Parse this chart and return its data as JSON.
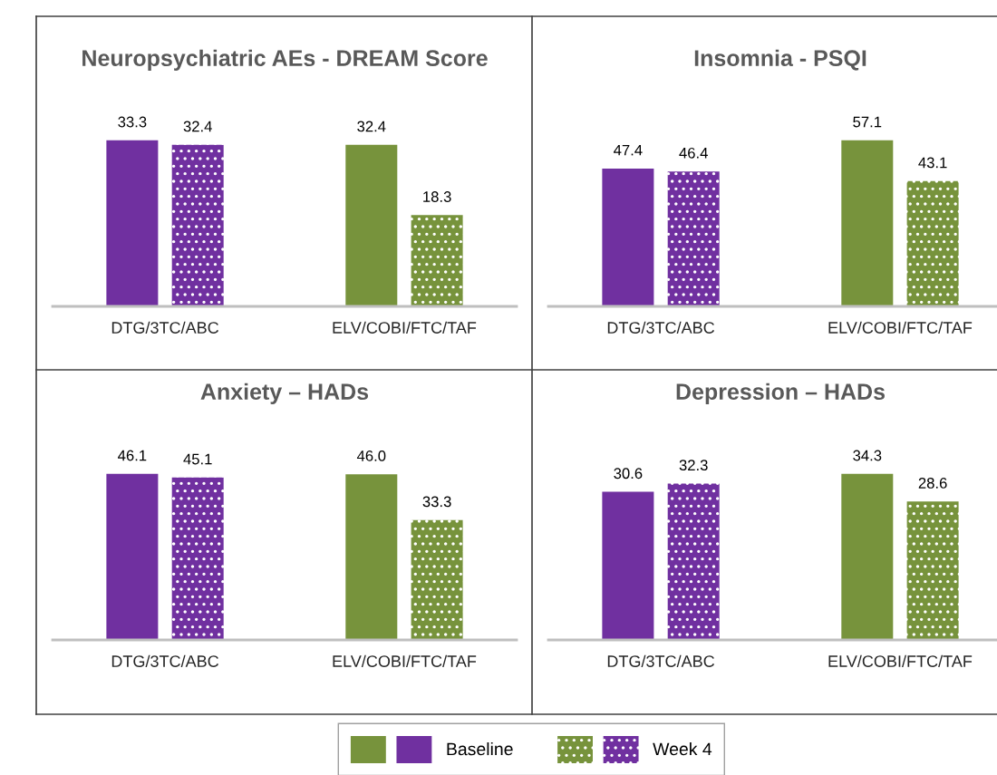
{
  "chart_data": [
    {
      "type": "bar",
      "title": "Neuropsychiatric AEs - DREAM Score",
      "categories": [
        "DTG/3TC/ABC",
        "ELV/COBI/FTC/TAF"
      ],
      "tick_labels": "x",
      "legend": "bottom",
      "series": [
        {
          "name": "Baseline",
          "colors": [
            "#7030a0",
            "#77933c"
          ],
          "values": [
            33.3,
            32.4
          ],
          "value_labels": [
            "33.3",
            "32.4"
          ]
        },
        {
          "name": "Week 4",
          "colors": [
            "#7030a0",
            "#77933c"
          ],
          "values": [
            32.4,
            18.3
          ],
          "value_labels": [
            "32.4",
            "18.3"
          ]
        }
      ]
    },
    {
      "type": "bar",
      "title": "Insomnia - PSQI",
      "categories": [
        "DTG/3TC/ABC",
        "ELV/COBI/FTC/TAF"
      ],
      "tick_labels": "x",
      "series": [
        {
          "colors": [
            "#7030a0",
            "#77933c"
          ],
          "values": [
            47.4,
            57.1
          ],
          "value_labels": [
            "47.4",
            "57.1"
          ]
        },
        {
          "colors": [
            "#7030a0",
            "#77933c"
          ],
          "values": [
            46.4,
            43.1
          ],
          "value_labels": [
            "46.4",
            "43.1"
          ]
        }
      ]
    },
    {
      "type": "bar",
      "title": "Anxiety – HADs",
      "categories": [
        "DTG/3TC/ABC",
        "ELV/COBI/FTC/TAF"
      ],
      "tick_labels": "x",
      "series": [
        {
          "colors": [
            "#7030a0",
            "#77933c"
          ],
          "values": [
            46.1,
            46.0
          ],
          "value_labels": [
            "46.1",
            "46.0"
          ]
        },
        {
          "colors": [
            "#7030a0",
            "#77933c"
          ],
          "values": [
            45.1,
            33.3
          ],
          "value_labels": [
            "45.1",
            "33.3"
          ]
        }
      ]
    },
    {
      "type": "bar",
      "title": "Depression – HADs",
      "categories": [
        "DTG/3TC/ABC",
        "ELV/COBI/FTC/TAF"
      ],
      "tick_labels": "x",
      "series": [
        {
          "colors": [
            "#7030a0",
            "#77933c"
          ],
          "values": [
            30.6,
            34.3
          ],
          "value_labels": [
            "30.6",
            "34.3"
          ]
        },
        {
          "colors": [
            "#7030a0",
            "#77933c"
          ],
          "values": [
            32.3,
            28.6
          ],
          "value_labels": [
            "32.3",
            "28.6"
          ]
        }
      ]
    }
  ]
}
